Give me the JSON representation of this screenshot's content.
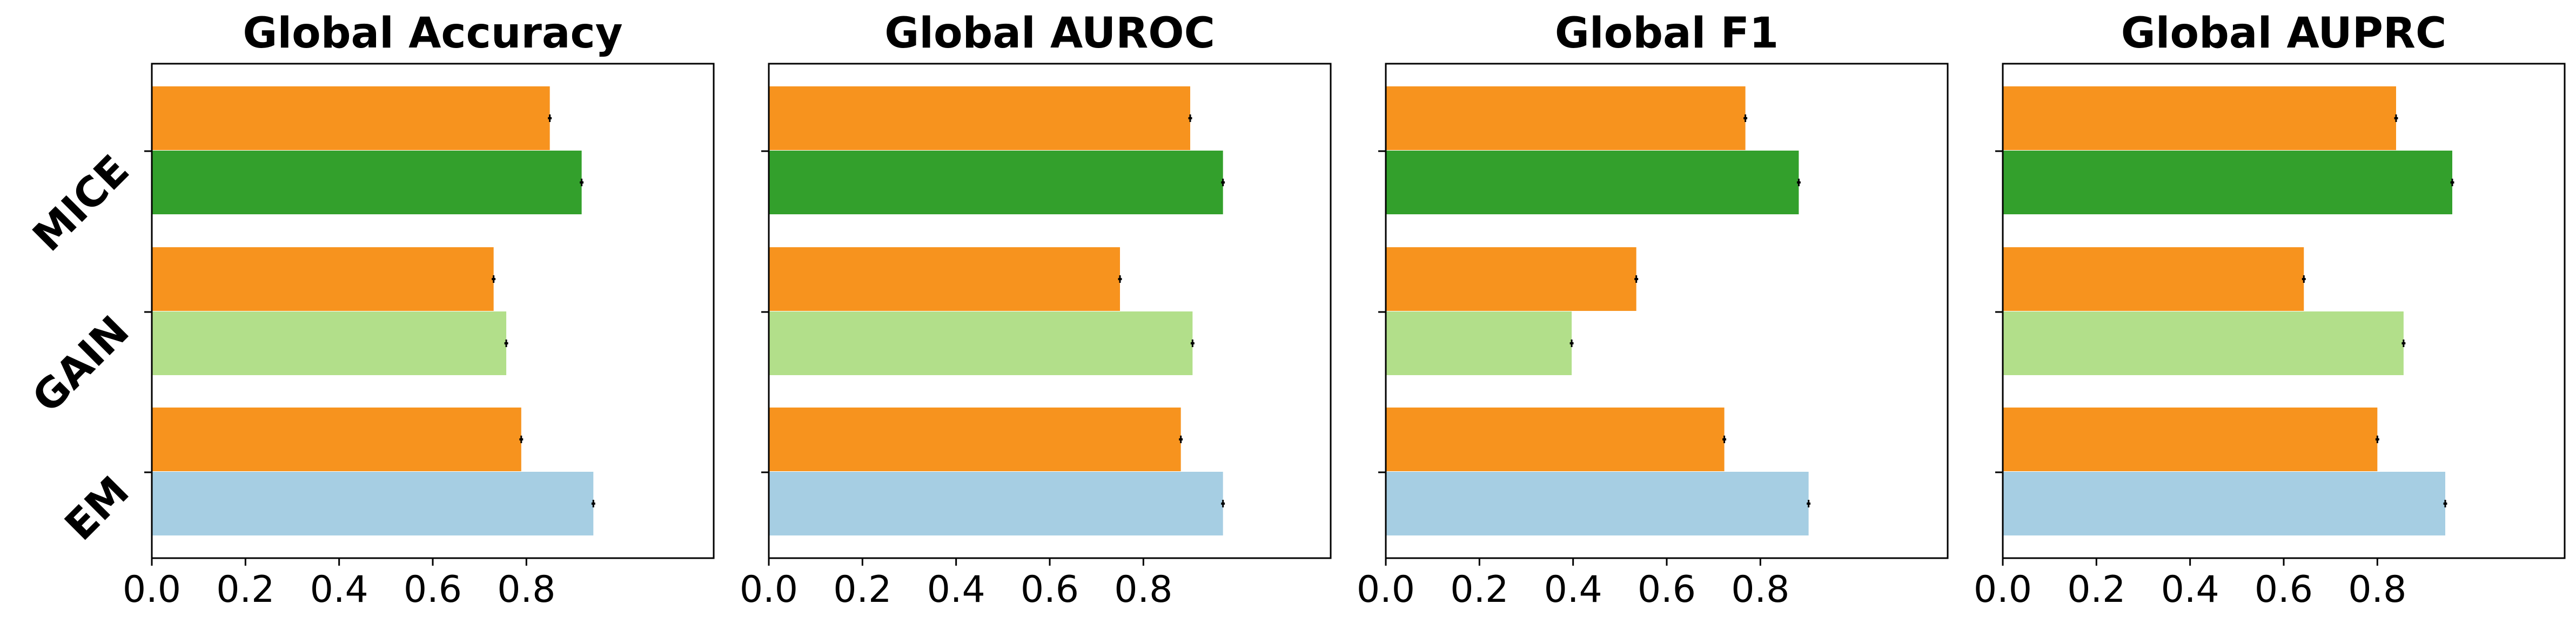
{
  "figure": {
    "background": "#ffffff"
  },
  "colors": {
    "orange": "#f7931e",
    "dark_green": "#33a02c",
    "light_green": "#b2df8a",
    "light_blue": "#a6cee3",
    "error_bar": "#000000"
  },
  "chart_data": [
    {
      "type": "bar",
      "orientation": "horizontal",
      "title": "Global Accuracy",
      "categories": [
        "EM",
        "GAIN",
        "MICE"
      ],
      "xlim": [
        0,
        1.2
      ],
      "xticks": [
        "0.0",
        "0.2",
        "0.4",
        "0.6",
        "0.8"
      ],
      "show_category_labels": true,
      "grid": false,
      "bars": [
        {
          "category": "MICE",
          "value": 0.85,
          "error": 0.004,
          "color": "orange"
        },
        {
          "category": "MICE",
          "value": 0.918,
          "error": 0.004,
          "color": "dark_green"
        },
        {
          "category": "GAIN",
          "value": 0.73,
          "error": 0.004,
          "color": "orange"
        },
        {
          "category": "GAIN",
          "value": 0.757,
          "error": 0.004,
          "color": "light_green"
        },
        {
          "category": "EM",
          "value": 0.789,
          "error": 0.004,
          "color": "orange"
        },
        {
          "category": "EM",
          "value": 0.943,
          "error": 0.004,
          "color": "light_blue"
        }
      ]
    },
    {
      "type": "bar",
      "orientation": "horizontal",
      "title": "Global AUROC",
      "categories": [
        "EM",
        "GAIN",
        "MICE"
      ],
      "xlim": [
        0,
        1.2
      ],
      "xticks": [
        "0.0",
        "0.2",
        "0.4",
        "0.6",
        "0.8"
      ],
      "show_category_labels": false,
      "grid": false,
      "bars": [
        {
          "category": "MICE",
          "value": 0.9,
          "error": 0.004,
          "color": "orange"
        },
        {
          "category": "MICE",
          "value": 0.97,
          "error": 0.004,
          "color": "dark_green"
        },
        {
          "category": "GAIN",
          "value": 0.75,
          "error": 0.004,
          "color": "orange"
        },
        {
          "category": "GAIN",
          "value": 0.905,
          "error": 0.004,
          "color": "light_green"
        },
        {
          "category": "EM",
          "value": 0.88,
          "error": 0.004,
          "color": "orange"
        },
        {
          "category": "EM",
          "value": 0.97,
          "error": 0.004,
          "color": "light_blue"
        }
      ]
    },
    {
      "type": "bar",
      "orientation": "horizontal",
      "title": "Global F1",
      "categories": [
        "EM",
        "GAIN",
        "MICE"
      ],
      "xlim": [
        0,
        1.2
      ],
      "xticks": [
        "0.0",
        "0.2",
        "0.4",
        "0.6",
        "0.8"
      ],
      "show_category_labels": false,
      "grid": false,
      "bars": [
        {
          "category": "MICE",
          "value": 0.768,
          "error": 0.004,
          "color": "orange"
        },
        {
          "category": "MICE",
          "value": 0.882,
          "error": 0.004,
          "color": "dark_green"
        },
        {
          "category": "GAIN",
          "value": 0.535,
          "error": 0.004,
          "color": "orange"
        },
        {
          "category": "GAIN",
          "value": 0.397,
          "error": 0.004,
          "color": "light_green"
        },
        {
          "category": "EM",
          "value": 0.723,
          "error": 0.004,
          "color": "orange"
        },
        {
          "category": "EM",
          "value": 0.903,
          "error": 0.004,
          "color": "light_blue"
        }
      ]
    },
    {
      "type": "bar",
      "orientation": "horizontal",
      "title": "Global AUPRC",
      "categories": [
        "EM",
        "GAIN",
        "MICE"
      ],
      "xlim": [
        0,
        1.2
      ],
      "xticks": [
        "0.0",
        "0.2",
        "0.4",
        "0.6",
        "0.8"
      ],
      "show_category_labels": false,
      "grid": false,
      "bars": [
        {
          "category": "MICE",
          "value": 0.84,
          "error": 0.004,
          "color": "orange"
        },
        {
          "category": "MICE",
          "value": 0.96,
          "error": 0.004,
          "color": "dark_green"
        },
        {
          "category": "GAIN",
          "value": 0.643,
          "error": 0.004,
          "color": "orange"
        },
        {
          "category": "GAIN",
          "value": 0.856,
          "error": 0.004,
          "color": "light_green"
        },
        {
          "category": "EM",
          "value": 0.8,
          "error": 0.004,
          "color": "orange"
        },
        {
          "category": "EM",
          "value": 0.945,
          "error": 0.004,
          "color": "light_blue"
        }
      ]
    }
  ]
}
